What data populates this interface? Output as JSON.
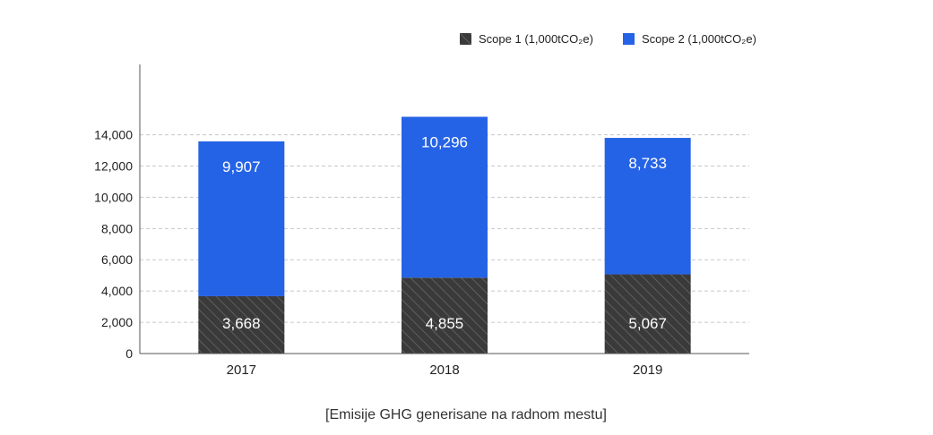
{
  "chart_data": {
    "type": "bar",
    "stacked": true,
    "categories": [
      "2017",
      "2018",
      "2019"
    ],
    "series": [
      {
        "name": "Scope 1 (1,000tCO₂e)",
        "values": [
          3668,
          4855,
          5067
        ],
        "labels": [
          "3,668",
          "4,855",
          "5,067"
        ],
        "color": "#3a3a3a",
        "pattern": "hatched"
      },
      {
        "name": "Scope 2 (1,000tCO₂e)",
        "values": [
          9907,
          10296,
          8733
        ],
        "labels": [
          "9,907",
          "10,296",
          "8,733"
        ],
        "color": "#2563e6"
      }
    ],
    "yticks": [
      0,
      2000,
      4000,
      6000,
      8000,
      10000,
      12000,
      14000
    ],
    "ytick_labels": [
      "0",
      "2,000",
      "4,000",
      "6,000",
      "8,000",
      "10,000",
      "12,000",
      "14,000"
    ],
    "ylim": [
      0,
      18500
    ],
    "grid": true,
    "legend_position": "top-right",
    "caption": "[Emisije GHG generisane na radnom mestu]"
  }
}
